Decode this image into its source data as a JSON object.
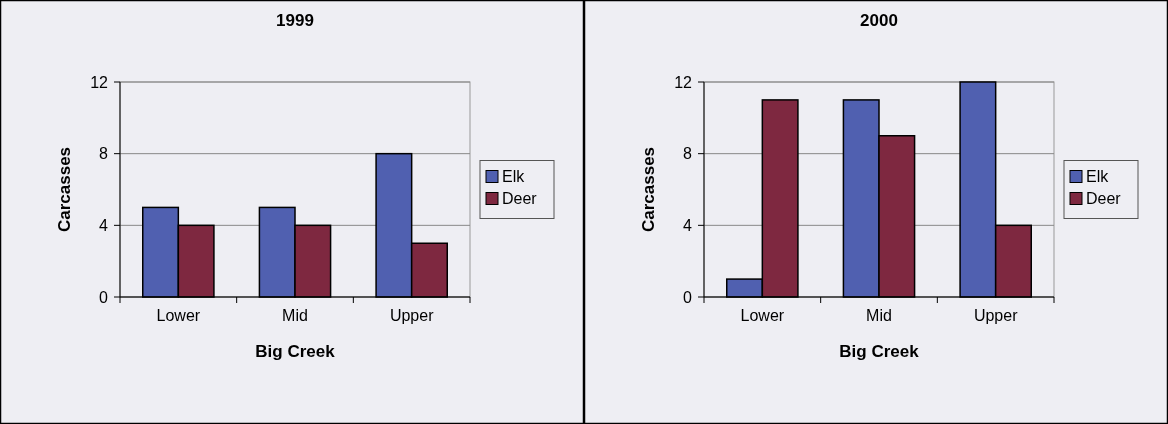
{
  "chart_data": [
    {
      "type": "bar",
      "title": "1999",
      "xlabel": "Big Creek",
      "ylabel": "Carcasses",
      "categories": [
        "Lower",
        "Mid",
        "Upper"
      ],
      "series": [
        {
          "name": "Elk",
          "color": "#5060b0",
          "values": [
            5,
            5,
            8
          ]
        },
        {
          "name": "Deer",
          "color": "#7e2840",
          "values": [
            4,
            4,
            3
          ]
        }
      ],
      "ylim": [
        0,
        12
      ],
      "yticks": [
        0,
        4,
        8,
        12
      ],
      "grid": "y",
      "legend": "right"
    },
    {
      "type": "bar",
      "title": "2000",
      "xlabel": "Big Creek",
      "ylabel": "Carcasses",
      "categories": [
        "Lower",
        "Mid",
        "Upper"
      ],
      "series": [
        {
          "name": "Elk",
          "color": "#5060b0",
          "values": [
            1,
            11,
            12
          ]
        },
        {
          "name": "Deer",
          "color": "#7e2840",
          "values": [
            11,
            9,
            4
          ]
        }
      ],
      "ylim": [
        0,
        12
      ],
      "yticks": [
        0,
        4,
        8,
        12
      ],
      "grid": "y",
      "legend": "right"
    }
  ]
}
